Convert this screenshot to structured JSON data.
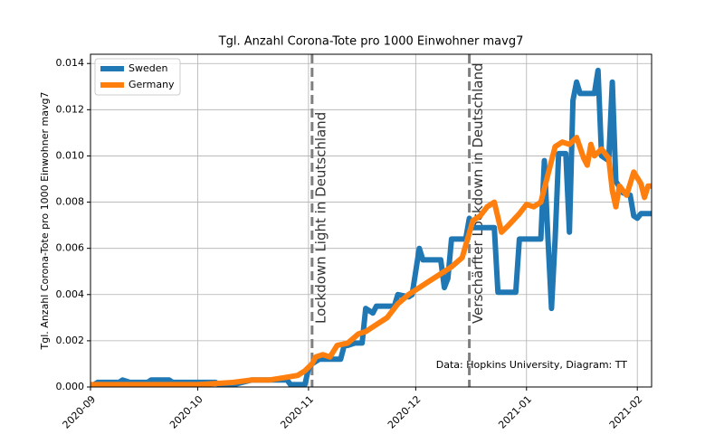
{
  "chart_data": {
    "type": "line",
    "title": "Tgl. Anzahl Corona-Tote pro 1000 Einwohner  mavg7",
    "y_label": "Tgl. Anzahl Corona-Tote pro 1000 Einwohner mavg7",
    "xlim": [
      0,
      157
    ],
    "xticks": [
      {
        "value": 0,
        "label": "2020-09"
      },
      {
        "value": 30,
        "label": "2020-10"
      },
      {
        "value": 61,
        "label": "2020-11"
      },
      {
        "value": 91,
        "label": "2020-12"
      },
      {
        "value": 122,
        "label": "2021-01"
      },
      {
        "value": 153,
        "label": "2021-02"
      }
    ],
    "ylim": [
      0,
      0.0144
    ],
    "yticks": [
      {
        "value": 0,
        "label": "0.000"
      },
      {
        "value": 0.002,
        "label": "0.002"
      },
      {
        "value": 0.004,
        "label": "0.004"
      },
      {
        "value": 0.006,
        "label": "0.006"
      },
      {
        "value": 0.008,
        "label": "0.008"
      },
      {
        "value": 0.01,
        "label": "0.010"
      },
      {
        "value": 0.012,
        "label": "0.012"
      },
      {
        "value": 0.014,
        "label": "0.014"
      }
    ],
    "grid": true,
    "legend": "upper left",
    "series": [
      {
        "name": "Sweden",
        "color": "#1f77b4",
        "x": [
          0,
          2,
          8,
          9,
          11,
          16,
          17,
          22,
          23,
          35,
          36,
          40,
          45,
          50,
          55,
          56,
          60,
          61,
          62,
          64,
          70,
          71,
          72,
          74,
          76,
          77,
          79,
          80,
          85,
          86,
          89,
          90,
          92,
          93,
          98,
          99,
          100,
          101,
          105,
          106,
          107,
          113,
          114,
          119,
          120,
          126,
          127,
          128,
          129,
          130,
          131,
          133,
          134,
          135,
          136,
          137,
          141,
          142,
          143,
          145,
          146,
          147,
          149,
          151,
          152,
          153,
          154,
          157
        ],
        "values": [
          0.0,
          0.0002,
          0.0002,
          0.0003,
          0.0002,
          0.0002,
          0.0003,
          0.0003,
          0.0002,
          0.0002,
          0.0001,
          0.0001,
          0.0003,
          0.0003,
          0.0003,
          0.0001,
          0.0001,
          0.0008,
          0.001,
          0.0012,
          0.0012,
          0.0018,
          0.0018,
          0.0019,
          0.0019,
          0.0034,
          0.0032,
          0.0035,
          0.0035,
          0.004,
          0.0039,
          0.004,
          0.006,
          0.0055,
          0.0055,
          0.0043,
          0.0047,
          0.0064,
          0.0064,
          0.0073,
          0.0069,
          0.0069,
          0.0041,
          0.0041,
          0.0064,
          0.0064,
          0.0098,
          0.0064,
          0.0034,
          0.0064,
          0.0101,
          0.0101,
          0.0067,
          0.0124,
          0.0132,
          0.0127,
          0.0127,
          0.0137,
          0.01,
          0.0098,
          0.0132,
          0.0089,
          0.0084,
          0.0083,
          0.0074,
          0.0073,
          0.0075,
          0.0075
        ]
      },
      {
        "name": "Germany",
        "color": "#ff7f0e",
        "x": [
          0,
          30,
          40,
          45,
          50,
          54,
          58,
          60,
          62,
          63,
          65,
          67,
          69,
          72,
          75,
          77,
          80,
          83,
          86,
          89,
          92,
          95,
          98,
          101,
          104,
          107,
          109,
          111,
          113,
          115,
          117,
          120,
          122,
          124,
          126,
          128,
          130,
          132,
          134,
          136,
          138,
          139,
          140,
          141,
          143,
          145,
          146,
          147,
          148,
          150,
          152,
          154,
          155,
          156,
          157
        ],
        "values": [
          0.0001,
          0.0001,
          0.0002,
          0.0003,
          0.0003,
          0.0004,
          0.0005,
          0.0007,
          0.001,
          0.0013,
          0.0014,
          0.0013,
          0.0018,
          0.0019,
          0.0023,
          0.0024,
          0.0027,
          0.003,
          0.0036,
          0.004,
          0.0043,
          0.0046,
          0.0049,
          0.0052,
          0.0056,
          0.0072,
          0.0074,
          0.0078,
          0.008,
          0.0067,
          0.007,
          0.0075,
          0.0079,
          0.0078,
          0.008,
          0.0092,
          0.0104,
          0.0106,
          0.0105,
          0.0108,
          0.0099,
          0.0096,
          0.0105,
          0.01,
          0.0103,
          0.0099,
          0.0085,
          0.0078,
          0.0087,
          0.0083,
          0.0093,
          0.0088,
          0.0082,
          0.0087,
          0.0087
        ]
      }
    ],
    "annotations": [
      {
        "x": 62,
        "text": "Lockdown Light in Deutschland"
      },
      {
        "x": 106,
        "text": "Verschärfter Lockdown in Deutschland"
      }
    ],
    "source": "Data: Hopkins University, Diagram: TT"
  }
}
